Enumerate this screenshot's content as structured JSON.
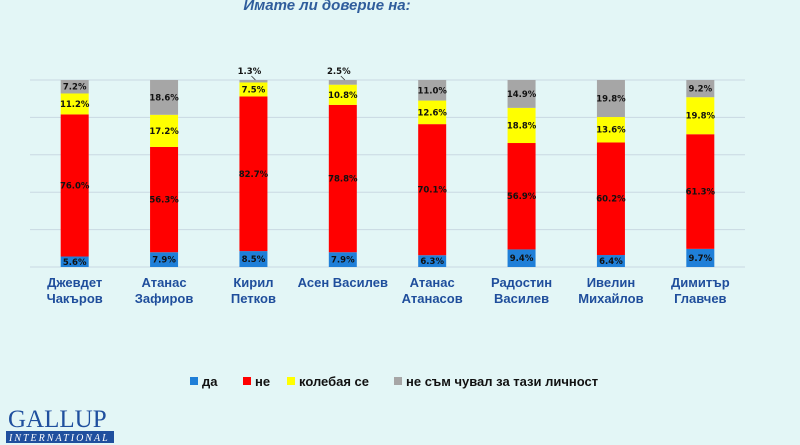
{
  "chart_data": {
    "type": "bar",
    "stacked": true,
    "title": "Имате  ли доверие на:",
    "categories": [
      [
        "Джевдет",
        "Чакъров"
      ],
      [
        "Атанас",
        "Зафиров"
      ],
      [
        "Кирил",
        "Петков"
      ],
      [
        "Асен Василев"
      ],
      [
        "Атанас",
        "Атанасов"
      ],
      [
        "Радостин",
        "Василев"
      ],
      [
        "Ивелин",
        "Михайлов"
      ],
      [
        "Димитър",
        "Главчев"
      ]
    ],
    "series": [
      {
        "name": "да",
        "color": "#1f7fd8",
        "values": [
          5.6,
          7.9,
          8.5,
          7.9,
          6.3,
          9.4,
          6.4,
          9.7
        ]
      },
      {
        "name": "не",
        "color": "#ff0000",
        "values": [
          76.0,
          56.3,
          82.7,
          78.8,
          70.1,
          56.9,
          60.2,
          61.3
        ]
      },
      {
        "name": "колебая се",
        "color": "#ffff00",
        "values": [
          11.2,
          17.2,
          7.5,
          10.8,
          12.6,
          18.8,
          13.6,
          19.8
        ]
      },
      {
        "name": "не съм чувал за тази личност",
        "color": "#a6a6a6",
        "values": [
          7.2,
          18.6,
          1.3,
          2.5,
          11.0,
          14.9,
          19.8,
          9.2
        ]
      }
    ],
    "ylim": [
      0,
      100
    ],
    "grid": true,
    "legend": "bottom"
  },
  "logo": {
    "line1": "GALLUP",
    "line2": "INTERNATIONAL"
  }
}
